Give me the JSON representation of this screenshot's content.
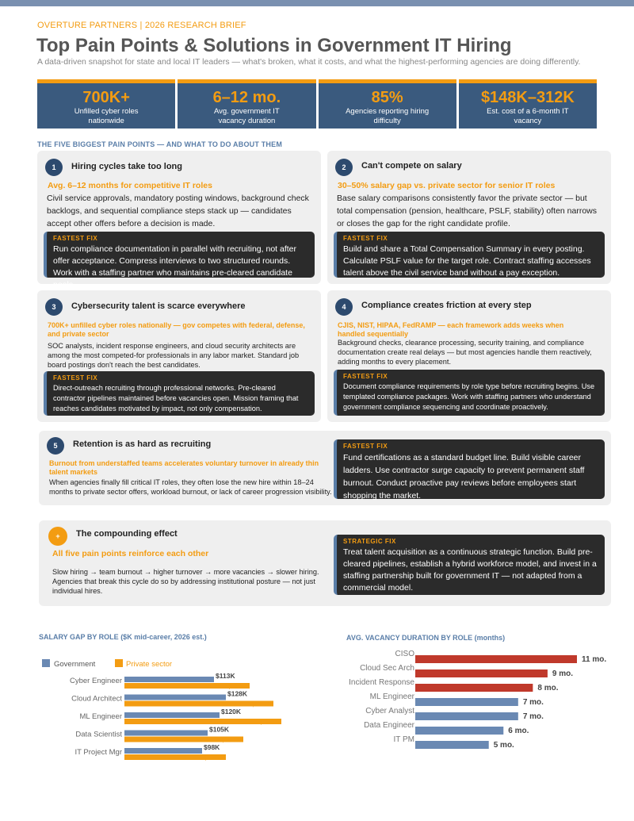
{
  "header": {
    "brand": "OVERTURE PARTNERS | 2026 RESEARCH BRIEF",
    "title": "Top Pain Points & Solutions in Government IT Hiring",
    "subtitle": "A data-driven snapshot for state and local IT leaders — what's broken, what it costs, and what the highest-performing agencies are doing differently."
  },
  "stats": [
    {
      "value": "700K+",
      "label": "Unfilled cyber roles nationwide"
    },
    {
      "value": "6–12 mo.",
      "label": "Avg. government IT vacancy duration"
    },
    {
      "value": "85%",
      "label": "Agencies reporting hiring difficulty"
    },
    {
      "value": "$148K–312K",
      "label": "Est. cost of a 6-month IT vacancy"
    }
  ],
  "section_heading": "THE FIVE BIGGEST PAIN POINTS — AND WHAT TO DO ABOUT THEM",
  "cards": [
    {
      "num": "1",
      "title": "Hiring cycles take too long",
      "highlight": "Avg. 6–12 months for competitive IT roles",
      "body": "Civil service approvals, mandatory posting windows, background check backlogs, and sequential compliance steps stack up — candidates accept other offers before a decision is made.",
      "fix_label": "FASTEST FIX",
      "fix": "Run compliance documentation in parallel with recruiting, not after offer acceptance. Compress interviews to two structured rounds. Work with a staffing partner who maintains pre-cleared candidate pools."
    },
    {
      "num": "2",
      "title": "Can't compete on salary",
      "highlight": "30–50% salary gap vs. private sector for senior IT roles",
      "body": "Base salary comparisons consistently favor the private sector — but total compensation (pension, healthcare, PSLF, stability) often narrows or closes the gap for the right candidate profile.",
      "fix_label": "FASTEST FIX",
      "fix": "Build and share a Total Compensation Summary in every posting. Calculate PSLF value for the target role. Contract staffing accesses talent above the civil service band without a pay exception."
    },
    {
      "num": "3",
      "title": "Cybersecurity talent is scarce everywhere",
      "highlight": "700K+ unfilled cyber roles nationally — gov competes with federal, defense, and private sector",
      "body": "SOC analysts, incident response engineers, and cloud security architects are among the most competed-for professionals in any labor market. Standard job board postings don't reach the best candidates.",
      "fix_label": "FASTEST FIX",
      "fix": "Direct-outreach recruiting through professional networks. Pre-cleared contractor pipelines maintained before vacancies open. Mission framing that reaches candidates motivated by impact, not only compensation."
    },
    {
      "num": "4",
      "title": "Compliance creates friction at every step",
      "highlight": "CJIS, NIST, HIPAA, FedRAMP — each framework adds weeks when handled sequentially",
      "body": "Background checks, clearance processing, security training, and compliance documentation create real delays — but most agencies handle them reactively, adding months to every placement.",
      "fix_label": "FASTEST FIX",
      "fix": "Document compliance requirements by role type before recruiting begins. Use templated compliance packages. Work with staffing partners who understand government compliance sequencing and coordinate proactively."
    },
    {
      "num": "5",
      "title": "Retention is as hard as recruiting",
      "highlight": "Burnout from understaffed teams accelerates voluntary turnover in already thin talent markets",
      "body": "When agencies finally fill critical IT roles, they often lose the new hire within 18–24 months to private sector offers, workload burnout, or lack of career progression visibility.",
      "fix_label": "FASTEST FIX",
      "fix": "Fund certifications as a standard budget line. Build visible career ladders. Use contractor surge capacity to prevent permanent staff burnout. Conduct proactive pay reviews before employees start shopping the market."
    },
    {
      "num": "+",
      "title": "The compounding effect",
      "highlight": "All five pain points reinforce each other",
      "body": "Slow hiring → team burnout → higher turnover → more vacancies → slower hiring. Agencies that break this cycle do so by addressing institutional posture — not just individual hires.",
      "fix_label": "STRATEGIC FIX",
      "fix": "Treat talent acquisition as a continuous strategic function. Build pre-cleared pipelines, establish a hybrid workforce model, and invest in a staffing partnership built for government IT — not adapted from a commercial model."
    }
  ],
  "colors": {
    "navy": "#3a5a7e",
    "orange": "#f39c12",
    "gov": "#6a89b3",
    "red": "#c0392b"
  },
  "chart_data": [
    {
      "type": "bar",
      "orientation": "horizontal",
      "title": "SALARY GAP BY ROLE ($K mid-career, 2026 est.)",
      "categories": [
        "Cyber Engineer",
        "Cloud Architect",
        "ML Engineer",
        "Data Scientist",
        "IT Project Mgr"
      ],
      "series": [
        {
          "name": "Government",
          "values": [
            113,
            128,
            120,
            105,
            98
          ],
          "labels": [
            "$113K",
            "$128K",
            "$120K",
            "$105K",
            "$98K"
          ],
          "color": "#6a89b3"
        },
        {
          "name": "Private sector",
          "values": [
            158,
            188,
            198,
            150,
            128
          ],
          "labels": [
            "$158K",
            "$188K",
            "$198K",
            "$150K",
            "$128K"
          ],
          "color": "#f39c12"
        }
      ],
      "xlim": [
        0,
        230
      ],
      "legend": "top-left"
    },
    {
      "type": "bar",
      "orientation": "horizontal",
      "title": "AVG. VACANCY DURATION BY ROLE (months)",
      "categories": [
        "CISO",
        "Cloud Sec Arch",
        "Incident Response",
        "ML Engineer",
        "Cyber Analyst",
        "Data Engineer",
        "IT PM"
      ],
      "values": [
        11,
        9,
        8,
        7,
        7,
        6,
        5
      ],
      "labels": [
        "11 mo.",
        "9 mo.",
        "8 mo.",
        "7 mo.",
        "7 mo.",
        "6 mo.",
        "5 mo."
      ],
      "colors": [
        "#c0392b",
        "#c0392b",
        "#c0392b",
        "#6a89b3",
        "#6a89b3",
        "#6a89b3",
        "#6a89b3"
      ],
      "xlim": [
        0,
        11
      ]
    }
  ]
}
